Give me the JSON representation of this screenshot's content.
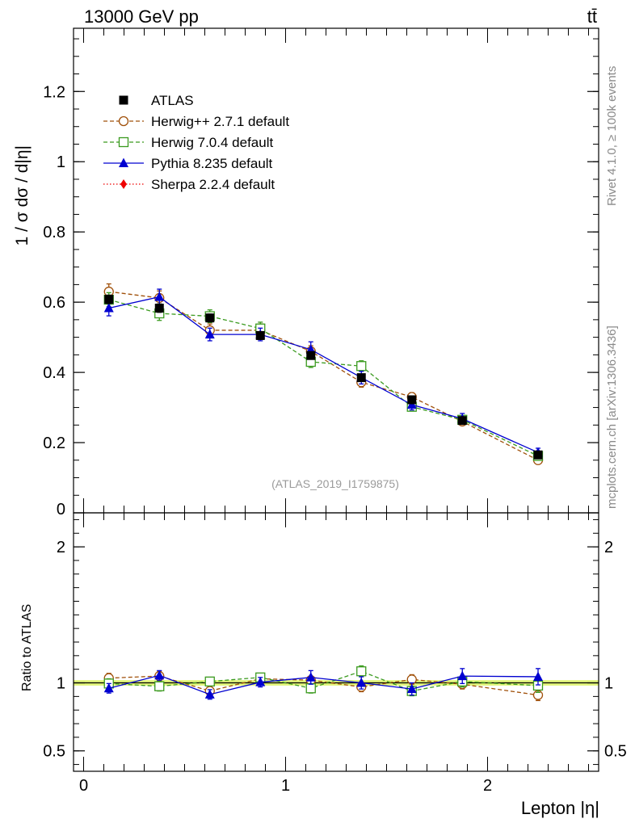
{
  "header": {
    "energy_label": "13000 GeV pp",
    "process_label": "tt̄"
  },
  "side_labels": {
    "rivet": "Rivet 4.1.0, ≥ 100k events",
    "mcplots": "mcplots.cern.ch [arXiv:1306.3436]"
  },
  "chart_data": [
    {
      "type": "line",
      "panel": "main",
      "ylabel": "1 / σ  dσ / d|η|",
      "watermark": "(ATLAS_2019_I1759875)",
      "xlim": [
        -0.05,
        2.55
      ],
      "ylim": [
        0,
        1.38
      ],
      "yticks": [
        0,
        0.2,
        0.4,
        0.6,
        0.8,
        1,
        1.2
      ],
      "ytick_labels": [
        "0",
        "0.2",
        "0.4",
        "0.6",
        "0.8",
        "1",
        "1.2"
      ],
      "x": [
        0.125,
        0.375,
        0.625,
        0.875,
        1.125,
        1.375,
        1.625,
        1.875,
        2.25
      ],
      "series": [
        {
          "name": "ATLAS",
          "marker": "filled-square",
          "color": "#000000",
          "style": "none",
          "values": [
            0.608,
            0.583,
            0.555,
            0.505,
            0.448,
            0.385,
            0.322,
            0.263,
            0.165
          ],
          "errors": [
            0.012,
            0.012,
            0.011,
            0.011,
            0.01,
            0.009,
            0.008,
            0.007,
            0.006
          ]
        },
        {
          "name": "Herwig++ 2.7.1 default",
          "marker": "open-circle",
          "color": "#a0500a",
          "style": "dashed",
          "values": [
            0.63,
            0.612,
            0.52,
            0.52,
            0.46,
            0.372,
            0.33,
            0.26,
            0.15
          ],
          "errors": [
            0.022,
            0.02,
            0.018,
            0.018,
            0.016,
            0.014,
            0.012,
            0.011,
            0.009
          ]
        },
        {
          "name": "Herwig 7.0.4 default",
          "marker": "open-square",
          "color": "#3a9a1e",
          "style": "dashed",
          "values": [
            0.607,
            0.568,
            0.56,
            0.525,
            0.43,
            0.418,
            0.302,
            0.265,
            0.162
          ],
          "errors": [
            0.02,
            0.02,
            0.018,
            0.018,
            0.016,
            0.015,
            0.012,
            0.011,
            0.009
          ]
        },
        {
          "name": "Pythia 8.235 default",
          "marker": "filled-triangle",
          "color": "#0000d0",
          "style": "solid",
          "values": [
            0.583,
            0.615,
            0.508,
            0.508,
            0.465,
            0.385,
            0.308,
            0.268,
            0.172
          ],
          "errors": [
            0.022,
            0.022,
            0.018,
            0.018,
            0.022,
            0.018,
            0.015,
            0.015,
            0.012
          ]
        }
      ],
      "legend_extra": {
        "name": "Sherpa 2.2.4 default",
        "marker": "filled-diamond",
        "color": "#ee0000",
        "style": "dotted"
      }
    },
    {
      "type": "line",
      "panel": "ratio",
      "ylabel": "Ratio to ATLAS",
      "xlabel": "Lepton |η|",
      "xlim": [
        -0.05,
        2.55
      ],
      "ylim": [
        0.35,
        2.25
      ],
      "yticks": [
        0.5,
        1,
        2
      ],
      "ytick_labels": [
        "0.5",
        "1",
        "2"
      ],
      "xticks": [
        0,
        1,
        2
      ],
      "xtick_labels": [
        "0",
        "1",
        "2"
      ],
      "x": [
        0.125,
        0.375,
        0.625,
        0.875,
        1.125,
        1.375,
        1.625,
        1.875,
        2.25
      ],
      "band": {
        "name": "ATLAS uncertainty",
        "color": "#e2f57a",
        "half_width": 0.02
      },
      "reference": 1,
      "series": [
        {
          "name": "Herwig++ 2.7.1 default",
          "marker": "open-circle",
          "color": "#a0500a",
          "style": "dashed",
          "values": [
            1.035,
            1.05,
            0.94,
            1.03,
            1.02,
            0.97,
            1.025,
            0.99,
            0.91
          ],
          "errors": [
            0.035,
            0.035,
            0.03,
            0.03,
            0.03,
            0.035,
            0.035,
            0.035,
            0.04
          ]
        },
        {
          "name": "Herwig 7.0.4 default",
          "marker": "open-square",
          "color": "#3a9a1e",
          "style": "dashed",
          "values": [
            0.995,
            0.975,
            1.01,
            1.04,
            0.96,
            1.085,
            0.94,
            1.01,
            0.98
          ],
          "errors": [
            0.035,
            0.035,
            0.03,
            0.03,
            0.035,
            0.04,
            0.035,
            0.04,
            0.05
          ]
        },
        {
          "name": "Pythia 8.235 default",
          "marker": "filled-triangle",
          "color": "#0000d0",
          "style": "solid",
          "values": [
            0.96,
            1.055,
            0.915,
            1.005,
            1.04,
            1.0,
            0.955,
            1.05,
            1.045
          ],
          "errors": [
            0.035,
            0.035,
            0.035,
            0.035,
            0.05,
            0.045,
            0.045,
            0.055,
            0.06
          ]
        }
      ]
    }
  ]
}
